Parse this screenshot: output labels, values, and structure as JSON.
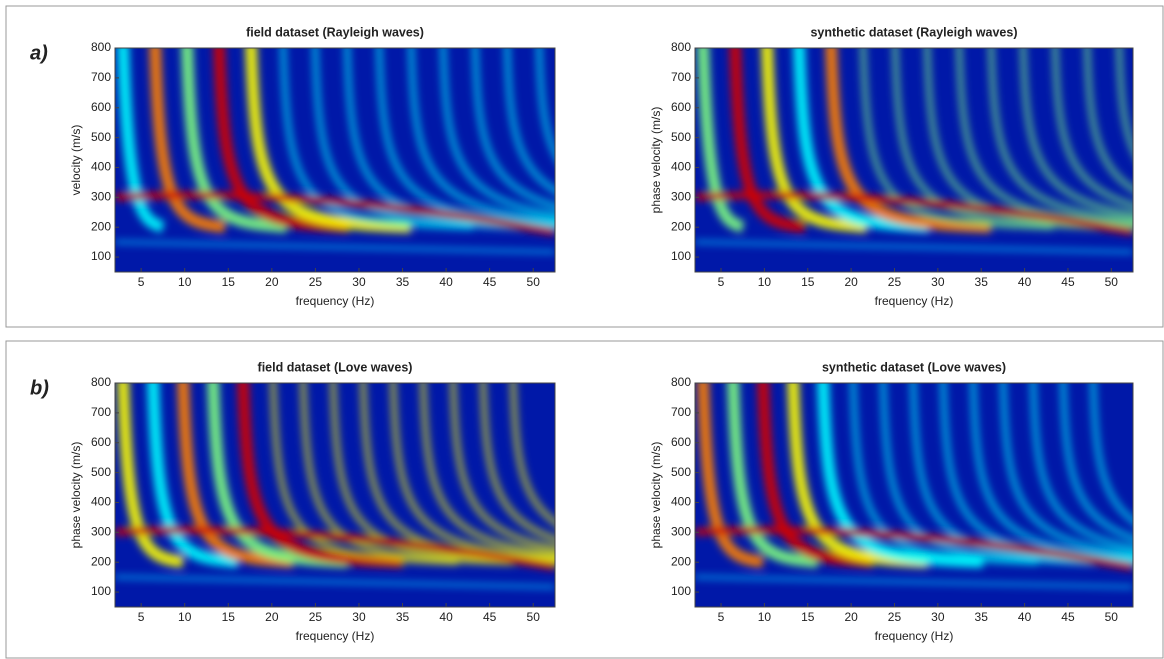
{
  "chart_data": [
    {
      "type": "heatmap",
      "panel_label": "a)",
      "title": "field dataset (Rayleigh waves)",
      "x_label": "frequency (Hz)",
      "y_label": "velocity (m/s)",
      "xlim": [
        2,
        52.5
      ],
      "xticks": [
        5,
        10,
        15,
        20,
        25,
        30,
        35,
        40,
        45,
        50
      ],
      "ylim": [
        50,
        800
      ],
      "yticks": [
        100,
        200,
        300,
        400,
        500,
        600,
        700,
        800
      ],
      "colormap": "jet"
    },
    {
      "type": "heatmap",
      "title": "synthetic dataset (Rayleigh waves)",
      "x_label": "frequency (Hz)",
      "y_label": "phase velocity (m/s)",
      "xlim": [
        2,
        52.5
      ],
      "xticks": [
        5,
        10,
        15,
        20,
        25,
        30,
        35,
        40,
        45,
        50
      ],
      "ylim": [
        50,
        800
      ],
      "yticks": [
        100,
        200,
        300,
        400,
        500,
        600,
        700,
        800
      ],
      "colormap": "jet"
    },
    {
      "type": "heatmap",
      "panel_label": "b)",
      "title": "field dataset (Love waves)",
      "x_label": "frequency (Hz)",
      "y_label": "phase velocity (m/s)",
      "xlim": [
        2,
        52.5
      ],
      "xticks": [
        5,
        10,
        15,
        20,
        25,
        30,
        35,
        40,
        45,
        50
      ],
      "ylim": [
        50,
        800
      ],
      "yticks": [
        100,
        200,
        300,
        400,
        500,
        600,
        700,
        800
      ],
      "colormap": "jet"
    },
    {
      "type": "heatmap",
      "title": "synthetic dataset (Love waves)",
      "x_label": "frequency (Hz)",
      "y_label": "phase velocity (m/s)",
      "xlim": [
        2,
        52.5
      ],
      "xticks": [
        5,
        10,
        15,
        20,
        25,
        30,
        35,
        40,
        45,
        50
      ],
      "ylim": [
        50,
        800
      ],
      "yticks": [
        100,
        200,
        300,
        400,
        500,
        600,
        700,
        800
      ],
      "colormap": "jet"
    }
  ]
}
